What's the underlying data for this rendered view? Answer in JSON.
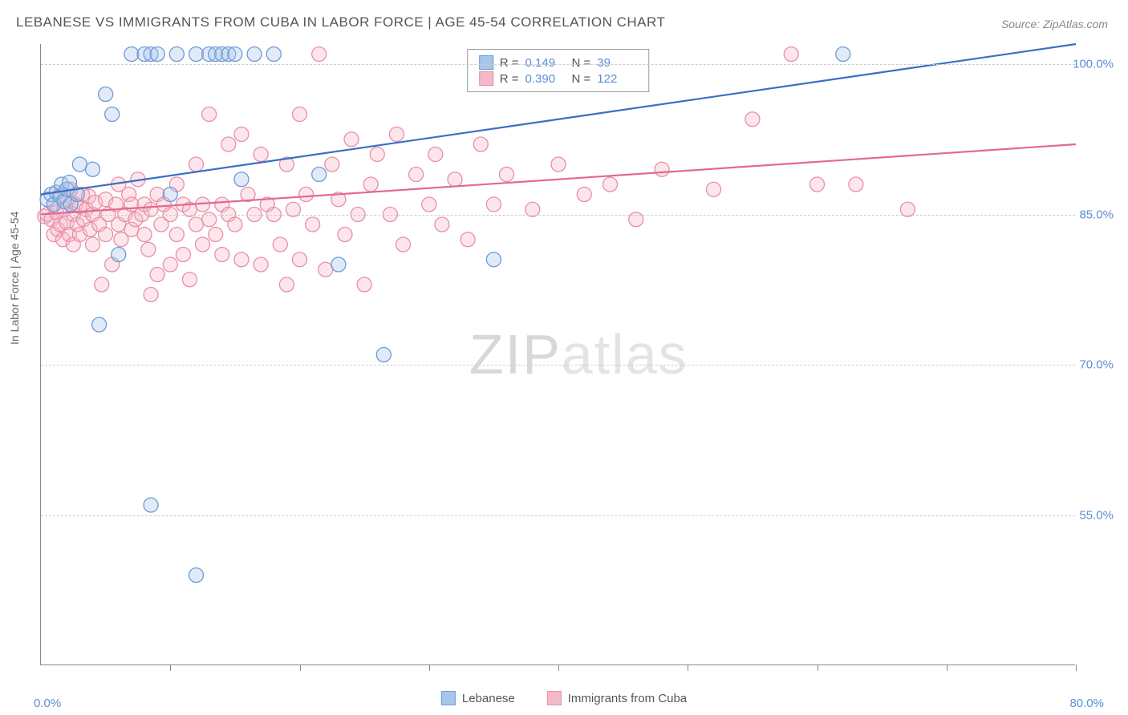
{
  "title": "LEBANESE VS IMMIGRANTS FROM CUBA IN LABOR FORCE | AGE 45-54 CORRELATION CHART",
  "source": "Source: ZipAtlas.com",
  "ylabel": "In Labor Force | Age 45-54",
  "watermark_a": "ZIP",
  "watermark_b": "atlas",
  "chart": {
    "type": "scatter_with_regression",
    "background_color": "#ffffff",
    "grid_color": "#cccccc",
    "axis_color": "#888888",
    "xlim": [
      0,
      80
    ],
    "ylim": [
      40,
      102
    ],
    "y_ticks": [
      {
        "value": 100.0,
        "label": "100.0%"
      },
      {
        "value": 85.0,
        "label": "85.0%"
      },
      {
        "value": 70.0,
        "label": "70.0%"
      },
      {
        "value": 55.0,
        "label": "55.0%"
      }
    ],
    "x_ticks_major": [
      0,
      10,
      20,
      30,
      40,
      50,
      60,
      70,
      80
    ],
    "x_origin_label": "0.0%",
    "x_max_label": "80.0%",
    "marker_radius": 9,
    "marker_fill_opacity": 0.35,
    "marker_stroke_width": 1.3,
    "series": [
      {
        "name": "Lebanese",
        "color": "#6b9bd8",
        "fill": "#a8c5ea",
        "R": "0.149",
        "N": "39",
        "trend": {
          "x1": 0,
          "y1": 87.0,
          "x2": 80,
          "y2": 102.0,
          "width": 2.2,
          "color": "#3a6fc4"
        },
        "points": [
          [
            0.5,
            86.5
          ],
          [
            0.8,
            87.0
          ],
          [
            1.0,
            86.0
          ],
          [
            1.2,
            87.2
          ],
          [
            1.5,
            86.8
          ],
          [
            1.6,
            88.0
          ],
          [
            1.8,
            86.3
          ],
          [
            2.0,
            87.5
          ],
          [
            2.2,
            88.2
          ],
          [
            2.3,
            86.0
          ],
          [
            3.0,
            90.0
          ],
          [
            2.8,
            87.0
          ],
          [
            4.0,
            89.5
          ],
          [
            4.5,
            74.0
          ],
          [
            5.0,
            97.0
          ],
          [
            5.5,
            95.0
          ],
          [
            6.0,
            81.0
          ],
          [
            7.0,
            101.0
          ],
          [
            8.0,
            101.0
          ],
          [
            8.5,
            101.0
          ],
          [
            8.5,
            56.0
          ],
          [
            9.0,
            101.0
          ],
          [
            10.0,
            87.0
          ],
          [
            10.5,
            101.0
          ],
          [
            12.0,
            101.0
          ],
          [
            12.0,
            49.0
          ],
          [
            13.0,
            101.0
          ],
          [
            13.5,
            101.0
          ],
          [
            14.0,
            101.0
          ],
          [
            14.5,
            101.0
          ],
          [
            15.0,
            101.0
          ],
          [
            15.5,
            88.5
          ],
          [
            16.5,
            101.0
          ],
          [
            18.0,
            101.0
          ],
          [
            21.5,
            89.0
          ],
          [
            23.0,
            80.0
          ],
          [
            26.5,
            71.0
          ],
          [
            35.0,
            80.5
          ],
          [
            62.0,
            101.0
          ]
        ]
      },
      {
        "name": "Immigrants from Cuba",
        "color": "#e88fa8",
        "fill": "#f5b8c8",
        "R": "0.390",
        "N": "122",
        "trend": {
          "x1": 0,
          "y1": 85.0,
          "x2": 80,
          "y2": 92.0,
          "width": 2.2,
          "color": "#e26a8c"
        },
        "points": [
          [
            0.3,
            84.8
          ],
          [
            0.5,
            85.0
          ],
          [
            0.8,
            84.5
          ],
          [
            1.0,
            86.0
          ],
          [
            1.0,
            83.0
          ],
          [
            1.2,
            85.2
          ],
          [
            1.3,
            83.5
          ],
          [
            1.5,
            84.0
          ],
          [
            1.5,
            87.0
          ],
          [
            1.7,
            82.5
          ],
          [
            1.8,
            85.5
          ],
          [
            2.0,
            84.2
          ],
          [
            2.0,
            86.5
          ],
          [
            2.2,
            83.0
          ],
          [
            2.3,
            87.5
          ],
          [
            2.5,
            85.0
          ],
          [
            2.5,
            82.0
          ],
          [
            2.7,
            86.0
          ],
          [
            2.8,
            84.0
          ],
          [
            3.0,
            85.8
          ],
          [
            3.0,
            83.0
          ],
          [
            3.2,
            87.0
          ],
          [
            3.3,
            84.5
          ],
          [
            3.5,
            85.5
          ],
          [
            3.7,
            86.8
          ],
          [
            3.8,
            83.5
          ],
          [
            4.0,
            85.0
          ],
          [
            4.0,
            82.0
          ],
          [
            4.2,
            86.2
          ],
          [
            4.5,
            84.0
          ],
          [
            4.7,
            78.0
          ],
          [
            5.0,
            83.0
          ],
          [
            5.0,
            86.5
          ],
          [
            5.2,
            85.0
          ],
          [
            5.5,
            80.0
          ],
          [
            5.8,
            86.0
          ],
          [
            6.0,
            84.0
          ],
          [
            6.0,
            88.0
          ],
          [
            6.2,
            82.5
          ],
          [
            6.5,
            85.0
          ],
          [
            6.8,
            87.0
          ],
          [
            7.0,
            83.5
          ],
          [
            7.0,
            86.0
          ],
          [
            7.3,
            84.5
          ],
          [
            7.5,
            88.5
          ],
          [
            7.8,
            85.0
          ],
          [
            8.0,
            83.0
          ],
          [
            8.0,
            86.0
          ],
          [
            8.3,
            81.5
          ],
          [
            8.5,
            77.0
          ],
          [
            8.5,
            85.5
          ],
          [
            9.0,
            87.0
          ],
          [
            9.0,
            79.0
          ],
          [
            9.3,
            84.0
          ],
          [
            9.5,
            86.0
          ],
          [
            10.0,
            85.0
          ],
          [
            10.0,
            80.0
          ],
          [
            10.5,
            83.0
          ],
          [
            10.5,
            88.0
          ],
          [
            11.0,
            86.0
          ],
          [
            11.0,
            81.0
          ],
          [
            11.5,
            85.5
          ],
          [
            11.5,
            78.5
          ],
          [
            12.0,
            84.0
          ],
          [
            12.0,
            90.0
          ],
          [
            12.5,
            86.0
          ],
          [
            12.5,
            82.0
          ],
          [
            13.0,
            95.0
          ],
          [
            13.0,
            84.5
          ],
          [
            13.5,
            83.0
          ],
          [
            14.0,
            86.0
          ],
          [
            14.0,
            81.0
          ],
          [
            14.5,
            85.0
          ],
          [
            14.5,
            92.0
          ],
          [
            15.0,
            84.0
          ],
          [
            15.5,
            93.0
          ],
          [
            15.5,
            80.5
          ],
          [
            16.0,
            87.0
          ],
          [
            16.5,
            85.0
          ],
          [
            17.0,
            91.0
          ],
          [
            17.0,
            80.0
          ],
          [
            17.5,
            86.0
          ],
          [
            18.0,
            85.0
          ],
          [
            18.5,
            82.0
          ],
          [
            19.0,
            90.0
          ],
          [
            19.0,
            78.0
          ],
          [
            19.5,
            85.5
          ],
          [
            20.0,
            95.0
          ],
          [
            20.0,
            80.5
          ],
          [
            20.5,
            87.0
          ],
          [
            21.0,
            84.0
          ],
          [
            21.5,
            101.0
          ],
          [
            22.0,
            79.5
          ],
          [
            22.5,
            90.0
          ],
          [
            23.0,
            86.5
          ],
          [
            23.5,
            83.0
          ],
          [
            24.0,
            92.5
          ],
          [
            24.5,
            85.0
          ],
          [
            25.0,
            78.0
          ],
          [
            25.5,
            88.0
          ],
          [
            26.0,
            91.0
          ],
          [
            27.0,
            85.0
          ],
          [
            27.5,
            93.0
          ],
          [
            28.0,
            82.0
          ],
          [
            29.0,
            89.0
          ],
          [
            30.0,
            86.0
          ],
          [
            30.5,
            91.0
          ],
          [
            31.0,
            84.0
          ],
          [
            32.0,
            88.5
          ],
          [
            33.0,
            82.5
          ],
          [
            34.0,
            92.0
          ],
          [
            35.0,
            86.0
          ],
          [
            36.0,
            89.0
          ],
          [
            38.0,
            85.5
          ],
          [
            40.0,
            90.0
          ],
          [
            42.0,
            87.0
          ],
          [
            44.0,
            88.0
          ],
          [
            46.0,
            84.5
          ],
          [
            48.0,
            89.5
          ],
          [
            52.0,
            87.5
          ],
          [
            55.0,
            94.5
          ],
          [
            58.0,
            101.0
          ],
          [
            60.0,
            88.0
          ],
          [
            63.0,
            88.0
          ],
          [
            67.0,
            85.5
          ]
        ]
      }
    ]
  },
  "legend": {
    "top_stats_label_r": "R =",
    "top_stats_label_n": "N =",
    "bottom": [
      {
        "label": "Lebanese",
        "color": "#6b9bd8",
        "fill": "#a8c5ea"
      },
      {
        "label": "Immigrants from Cuba",
        "color": "#e88fa8",
        "fill": "#f5b8c8"
      }
    ]
  }
}
